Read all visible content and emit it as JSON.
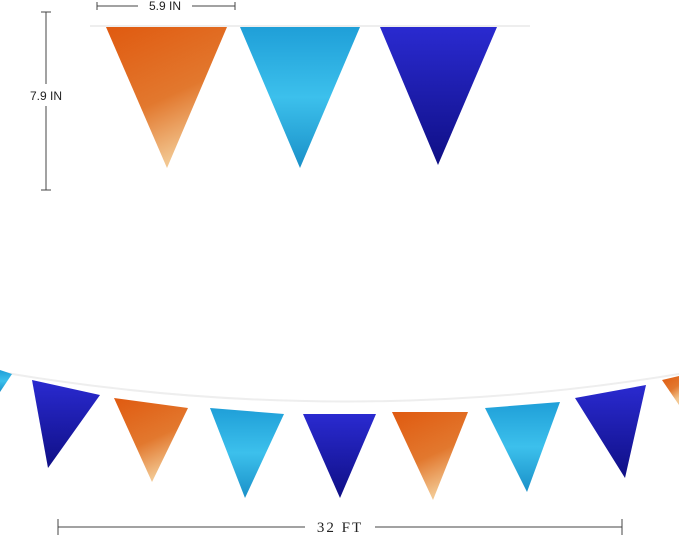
{
  "dimensions": {
    "width_label": "5.9 IN",
    "height_label": "7.9 IN",
    "length_label": "32 FT"
  },
  "colors": {
    "orange": "#e0621a",
    "light_blue": "#2aaee3",
    "royal_blue": "#1a1aa8",
    "string": "#eeeeee"
  }
}
